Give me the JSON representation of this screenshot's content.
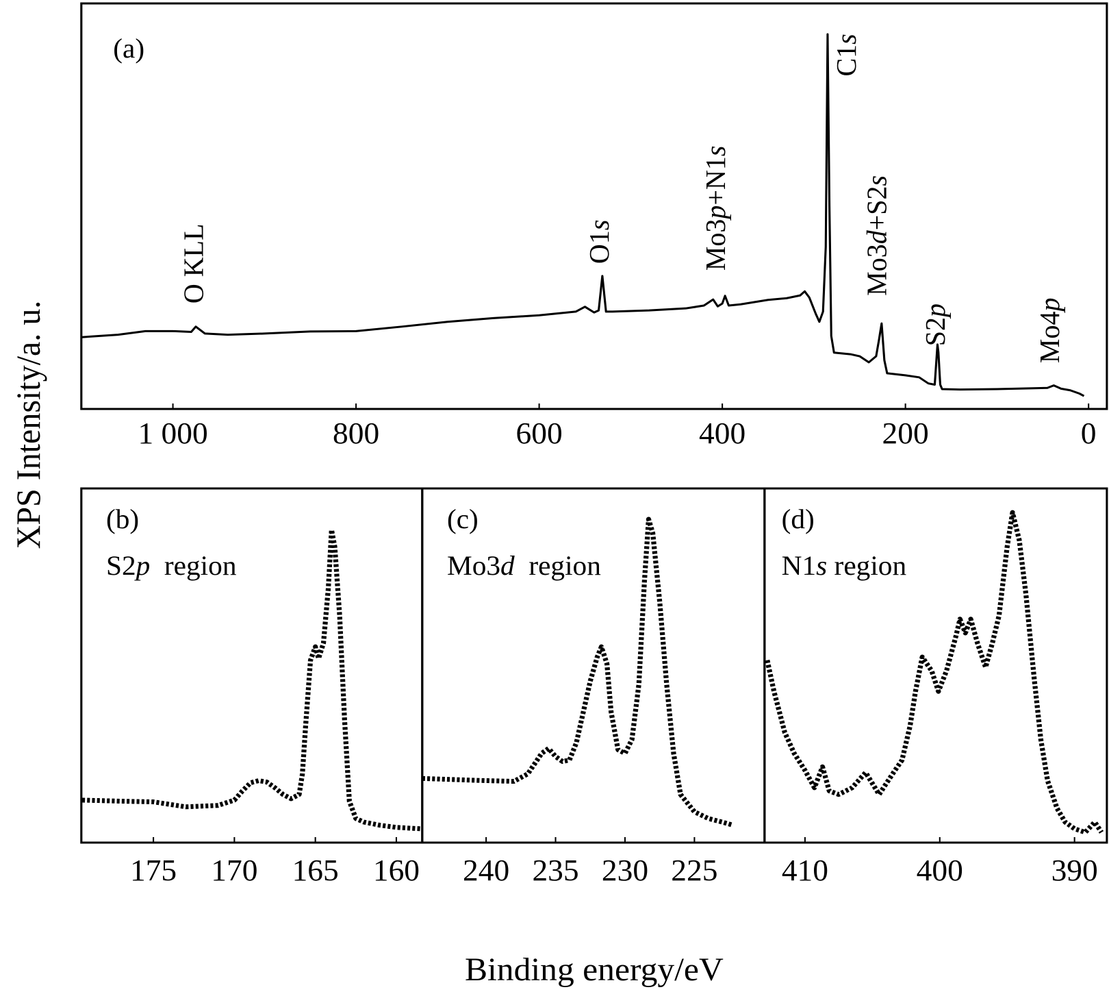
{
  "ylabel": "XPS Intensity/a. u.",
  "xlabel": "Binding energy/eV",
  "chart_data": [
    {
      "type": "line",
      "label": "(a)",
      "color": "#000000",
      "line_style": "solid",
      "xlim": [
        1100,
        -20
      ],
      "ylim": [
        0,
        100
      ],
      "xticks": [
        {
          "value": 1000,
          "label": "1 000"
        },
        800,
        600,
        400,
        200,
        0
      ],
      "x": [
        1100,
        1060,
        1030,
        1000,
        980,
        975,
        965,
        940,
        900,
        850,
        800,
        750,
        700,
        650,
        600,
        560,
        550,
        540,
        535,
        531,
        527,
        520,
        480,
        440,
        420,
        410,
        405,
        400,
        397,
        393,
        380,
        350,
        330,
        315,
        310,
        305,
        298,
        294,
        290,
        287,
        285,
        283,
        281,
        278,
        260,
        250,
        240,
        232,
        229,
        226,
        223,
        220,
        200,
        185,
        175,
        168,
        165,
        164,
        162,
        160,
        140,
        100,
        60,
        45,
        38,
        30,
        20,
        10,
        5
      ],
      "series": [
        {
          "values": [
            17.7,
            18.3,
            19.2,
            19.2,
            19.0,
            20.3,
            18.6,
            18.3,
            18.6,
            19.1,
            19.2,
            20.3,
            21.5,
            22.4,
            23.1,
            24.0,
            25.2,
            23.8,
            24.3,
            32.8,
            24.0,
            24.0,
            24.3,
            24.8,
            25.5,
            27.0,
            25.3,
            26.0,
            27.9,
            25.5,
            25.8,
            26.9,
            27.3,
            28.0,
            29.0,
            27.5,
            23.5,
            21.5,
            24,
            40,
            92.4,
            50,
            18,
            13.9,
            13.5,
            13.0,
            11.5,
            13,
            16.9,
            21.1,
            12,
            8.8,
            8.3,
            7.8,
            6.3,
            6.0,
            15.9,
            14,
            6,
            4.9,
            4.8,
            4.9,
            5.1,
            5.2,
            5.8,
            5.0,
            4.6,
            3.8,
            3.2
          ]
        }
      ],
      "annotations": [
        {
          "text": "O KLL",
          "x": 974,
          "y": 26
        },
        {
          "text": "O1s",
          "x": 531,
          "y": 35.8
        },
        {
          "text": "Mo3p+N1s",
          "x": 404,
          "y": 34.1
        },
        {
          "text": "C1s",
          "x": 261,
          "y": 82
        },
        {
          "text": "Mo3d+S2s",
          "x": 228,
          "y": 27.9
        },
        {
          "text": "S2p",
          "x": 164,
          "y": 15.5
        },
        {
          "text": "Mo4p",
          "x": 39,
          "y": 11.3
        }
      ]
    },
    {
      "type": "line",
      "label": "(b)",
      "subtitle": "S2p  region",
      "color": "#000000",
      "line_style": "dotted",
      "xlim": [
        179.45,
        158.4
      ],
      "ylim": [
        0,
        100
      ],
      "xticks": [
        175,
        170,
        165,
        160
      ],
      "x": [
        179.4,
        177,
        175,
        173,
        171,
        170,
        169.5,
        169,
        168.5,
        168,
        167.5,
        167,
        166.5,
        166,
        165.8,
        165.6,
        165.3,
        165.0,
        164.8,
        164.5,
        164.2,
        164.0,
        163.8,
        163.5,
        163.2,
        162.9,
        162.5,
        162,
        161,
        160,
        158.5
      ],
      "series": [
        {
          "values": [
            12.0,
            11.7,
            11.5,
            10.1,
            10.5,
            12.0,
            14.6,
            16.9,
            17.5,
            17.1,
            15.5,
            13.6,
            12.4,
            13.6,
            19.4,
            33.0,
            51.5,
            55.3,
            52.0,
            56.3,
            71.8,
            88.3,
            83.5,
            64.1,
            35.0,
            11.7,
            6.8,
            5.8,
            4.9,
            4.3,
            3.9
          ]
        }
      ]
    },
    {
      "type": "line",
      "label": "(c)",
      "subtitle": "Mo3d  region",
      "color": "#000000",
      "line_style": "dotted",
      "xlim": [
        244.6,
        219.95
      ],
      "ylim": [
        0,
        100
      ],
      "xticks": [
        240,
        235,
        230,
        225
      ],
      "x": [
        244.6,
        240,
        238,
        237,
        236,
        235.5,
        235,
        234.5,
        234,
        233.5,
        233,
        232.5,
        232,
        231.7,
        231.3,
        231,
        230.5,
        230,
        229.5,
        229,
        228.6,
        228.3,
        228,
        227.5,
        227,
        226.5,
        226,
        225,
        224,
        223,
        222.2
      ],
      "series": [
        {
          "values": [
            18.1,
            17.5,
            17.3,
            19.4,
            25.2,
            26.6,
            24.3,
            22.9,
            23.3,
            28.2,
            36.9,
            45.6,
            52.4,
            55.3,
            50.5,
            36.9,
            26.2,
            25.2,
            29.1,
            44.7,
            73.8,
            91.3,
            87.4,
            68.0,
            44.7,
            25.2,
            13.6,
            8.7,
            6.8,
            5.8,
            4.9
          ]
        }
      ]
    },
    {
      "type": "line",
      "label": "(d)",
      "subtitle": "N1s region",
      "color": "#000000",
      "line_style": "dotted",
      "xlim": [
        413,
        387.6
      ],
      "ylim": [
        0,
        100
      ],
      "xticks": [
        410,
        400,
        390
      ],
      "x": [
        412.8,
        412.3,
        411.5,
        410.8,
        410,
        409.3,
        408.7,
        408.2,
        407.5,
        406.5,
        405.5,
        404.5,
        403.5,
        402.8,
        402.2,
        401.8,
        401.3,
        400.6,
        400.1,
        399.5,
        398.8,
        398.5,
        398.1,
        397.7,
        397.2,
        396.6,
        396.1,
        395.6,
        395.0,
        394.6,
        394.1,
        393.6,
        393.0,
        392.5,
        392.0,
        391.3,
        390.7,
        390,
        389.2,
        388.5,
        388
      ],
      "series": [
        {
          "values": [
            51.5,
            42.7,
            31.1,
            25.2,
            20.4,
            15.5,
            21.4,
            14.6,
            13.6,
            15.5,
            19.8,
            13.6,
            19.4,
            23.3,
            33.0,
            42.7,
            52.4,
            48.5,
            42.7,
            48.5,
            58.3,
            63.1,
            59.2,
            63.1,
            56.3,
            49.5,
            56.3,
            64.1,
            83.5,
            93.2,
            85.4,
            69.9,
            46.6,
            29.1,
            17.5,
            9.7,
            5.8,
            3.9,
            2.9,
            5.8,
            2.9
          ]
        }
      ]
    }
  ]
}
